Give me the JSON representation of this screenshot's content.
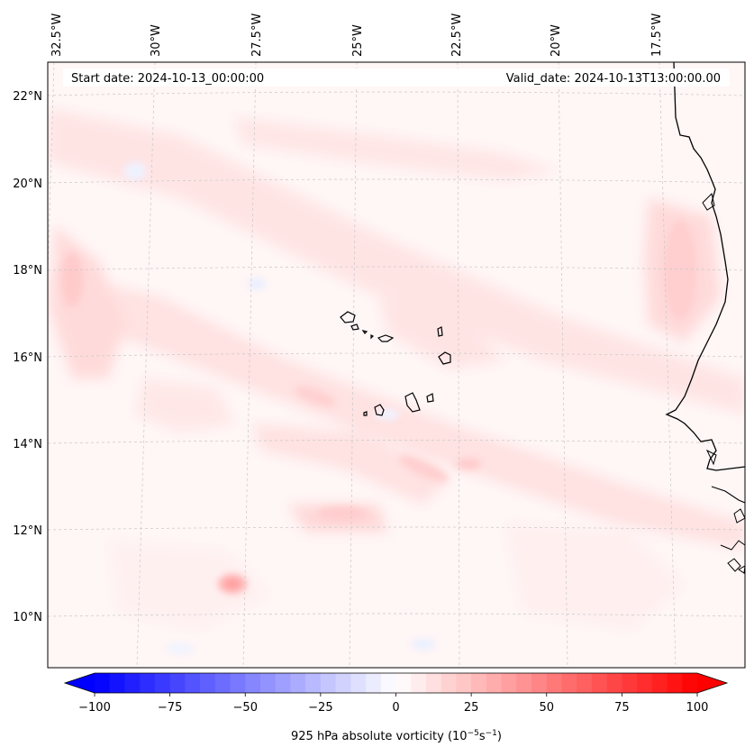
{
  "map": {
    "start_date_label": "Start date: 2024-10-13_00:00:00",
    "valid_date_label": "Valid_date: 2024-10-13T13:00:00.00",
    "lon_labels": [
      "32.5°W",
      "30°W",
      "27.5°W",
      "25°W",
      "22.5°W",
      "20°W",
      "17.5°W"
    ],
    "lat_labels": [
      "22°N",
      "20°N",
      "18°N",
      "16°N",
      "14°N",
      "12°N",
      "10°N"
    ],
    "region": "Cape Verde Islands and West African coast",
    "field": "925 hPa absolute vorticity",
    "colors": {
      "negative": "#0000ff",
      "zero": "#ffffff",
      "positive": "#ff0000",
      "coastline": "#000000",
      "gridline": "#bbbbbb"
    }
  },
  "colorbar": {
    "min": -100,
    "max": 100,
    "levels": 40,
    "ticks": [
      "−100",
      "−75",
      "−50",
      "−25",
      "0",
      "25",
      "50",
      "75",
      "100"
    ],
    "label_prefix": "925 hPa absolute vorticity (10",
    "label_exp1": "−5",
    "label_mid": "s",
    "label_exp2": "−1",
    "label_suffix": ")"
  }
}
